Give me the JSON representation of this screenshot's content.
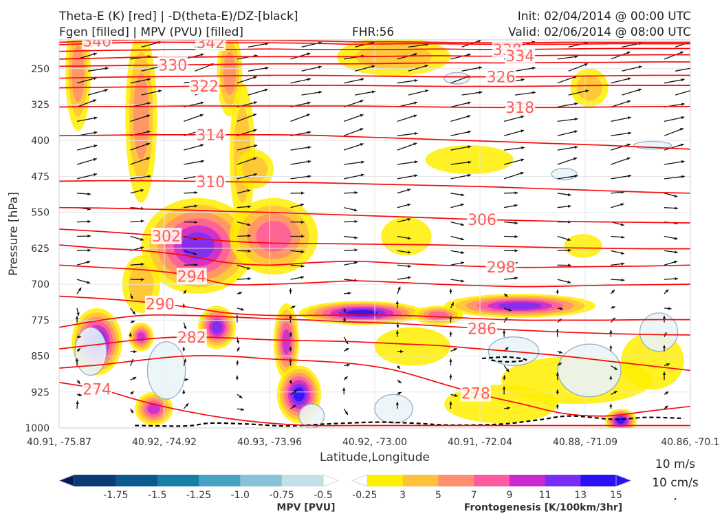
{
  "header": {
    "title_line1": "Theta-E (K) [red] | -D(theta-E)/DZ-[black]",
    "title_line2": "Fgen [filled] | MPV (PVU) [filled]",
    "fhr": "FHR:56",
    "init": "Init: 02/04/2014 @ 00:00 UTC",
    "valid": "Valid: 02/06/2014 @ 08:00 UTC"
  },
  "chart_data": {
    "type": "cross-section",
    "xlabel": "Latitude,Longitude",
    "ylabel": "Pressure [hPa]",
    "x_ticks": [
      "40.91, -75.87",
      "40.92, -74.92",
      "40.93, -73.96",
      "40.92, -73.00",
      "40.91, -72.04",
      "40.88, -71.09",
      "40.86, -70.1"
    ],
    "y_ticks": [
      250,
      325,
      400,
      475,
      550,
      625,
      700,
      775,
      850,
      925,
      1000
    ],
    "ylim": [
      1000,
      190
    ],
    "grid": true,
    "theta_e_contours": [
      {
        "value": 340,
        "label": "340",
        "ys": [
          195,
          192,
          190,
          190,
          191,
          191,
          192,
          194,
          194,
          195,
          196,
          196,
          195,
          195,
          195,
          195
        ]
      },
      {
        "value": 342,
        "label": "342",
        "ys": [
          200,
          197,
          195,
          195,
          196,
          196,
          197,
          199,
          198,
          198,
          199,
          199,
          199,
          198,
          198,
          198
        ]
      },
      {
        "value": 338,
        "label": "338",
        "ys": [
          214,
          212,
          211,
          210,
          210,
          209,
          210,
          210,
          210,
          209,
          210,
          210,
          209,
          208,
          208,
          208
        ]
      },
      {
        "value": 334,
        "label": "334",
        "ys": [
          230,
          228,
          226,
          226,
          225,
          225,
          225,
          225,
          224,
          223,
          224,
          223,
          222,
          222,
          221,
          221
        ]
      },
      {
        "value": 330,
        "label": "330",
        "ys": [
          245,
          244,
          243,
          242,
          241,
          240,
          240,
          240,
          239,
          238,
          238,
          238,
          237,
          237,
          236,
          236
        ]
      },
      {
        "value": 326,
        "label": "326",
        "ys": [
          270,
          268,
          267,
          266,
          265,
          264,
          264,
          265,
          266,
          267,
          267,
          267,
          266,
          265,
          264,
          264
        ]
      },
      {
        "value": 322,
        "label": "322",
        "ys": [
          290,
          289,
          288,
          287,
          286,
          285,
          285,
          285,
          286,
          287,
          287,
          287,
          286,
          285,
          285,
          285
        ]
      },
      {
        "value": 318,
        "label": "318",
        "ys": [
          330,
          329,
          329,
          328,
          328,
          328,
          328,
          328,
          329,
          330,
          331,
          331,
          331,
          330,
          329,
          329
        ]
      },
      {
        "value": 314,
        "label": "314",
        "ys": [
          390,
          389,
          388,
          388,
          388,
          388,
          389,
          392,
          395,
          398,
          401,
          404,
          407,
          410,
          414,
          418
        ]
      },
      {
        "value": 310,
        "label": "310",
        "ys": [
          485,
          484,
          484,
          485,
          486,
          487,
          488,
          490,
          492,
          494,
          496,
          499,
          502,
          505,
          508,
          510
        ]
      },
      {
        "value": 306,
        "label": "306",
        "ys": [
          540,
          541,
          543,
          545,
          548,
          550,
          553,
          556,
          559,
          562,
          565,
          567,
          569,
          570,
          571,
          572
        ]
      },
      {
        "value": 302,
        "label": "302",
        "ys": [
          585,
          590,
          596,
          602,
          610,
          614,
          615,
          616,
          617,
          618,
          620,
          622,
          624,
          625,
          626,
          626
        ]
      },
      {
        "value": 298,
        "label": "298",
        "ys": [
          618,
          625,
          630,
          640,
          655,
          660,
          655,
          652,
          656,
          660,
          663,
          665,
          664,
          663,
          662,
          660
        ]
      },
      {
        "value": 294,
        "label": "294",
        "ys": [
          660,
          665,
          670,
          680,
          700,
          700,
          697,
          693,
          696,
          700,
          703,
          705,
          704,
          702,
          701,
          700
        ]
      },
      {
        "value": 290,
        "label": "290",
        "ys": [
          725,
          730,
          737,
          747,
          760,
          765,
          765,
          764,
          765,
          768,
          772,
          775,
          775,
          775,
          774,
          774
        ]
      },
      {
        "value": 286,
        "label": "286",
        "ys": [
          790,
          775,
          765,
          765,
          768,
          772,
          775,
          779,
          782,
          787,
          792,
          796,
          800,
          803,
          805,
          806
        ]
      },
      {
        "value": 282,
        "label": "282",
        "ys": [
          835,
          825,
          815,
          810,
          812,
          816,
          818,
          820,
          824,
          828,
          835,
          842,
          850,
          860,
          870,
          880
        ]
      },
      {
        "value": 278,
        "label": "278",
        "ys": [
          875,
          868,
          858,
          850,
          850,
          856,
          860,
          866,
          880,
          905,
          930,
          950,
          970,
          975,
          965,
          955
        ]
      },
      {
        "value": 274,
        "label": "274",
        "ys": [
          905,
          920,
          945,
          965,
          980,
          990,
          995,
          995,
          995,
          995,
          995,
          995,
          995,
          995,
          995,
          995
        ]
      }
    ],
    "mpv_colorbar": {
      "label": "MPV [PVU]",
      "ticks": [
        "-1.75",
        "-1.5",
        "-1.25",
        "-1.0",
        "-0.75",
        "-0.5",
        "-0.25"
      ],
      "colors": [
        "#021a5a",
        "#0b3a75",
        "#0c5a8d",
        "#177fa5",
        "#47a1c3",
        "#87c2d8",
        "#c1e0e8",
        "#ffffff"
      ]
    },
    "fgen_colorbar": {
      "label": "Frontogenesis [K/100km/3hr]",
      "ticks": [
        "3",
        "5",
        "7",
        "9",
        "11",
        "13",
        "15"
      ],
      "colors": [
        "#ffffff",
        "#ffef00",
        "#ffc13c",
        "#ff8f6e",
        "#ff5aa0",
        "#c92ad0",
        "#7a2ef5",
        "#2a10f5",
        "#2a10f5"
      ]
    },
    "wind_reference": {
      "label1": "10 m/s",
      "label2": "10 cm/s"
    }
  }
}
